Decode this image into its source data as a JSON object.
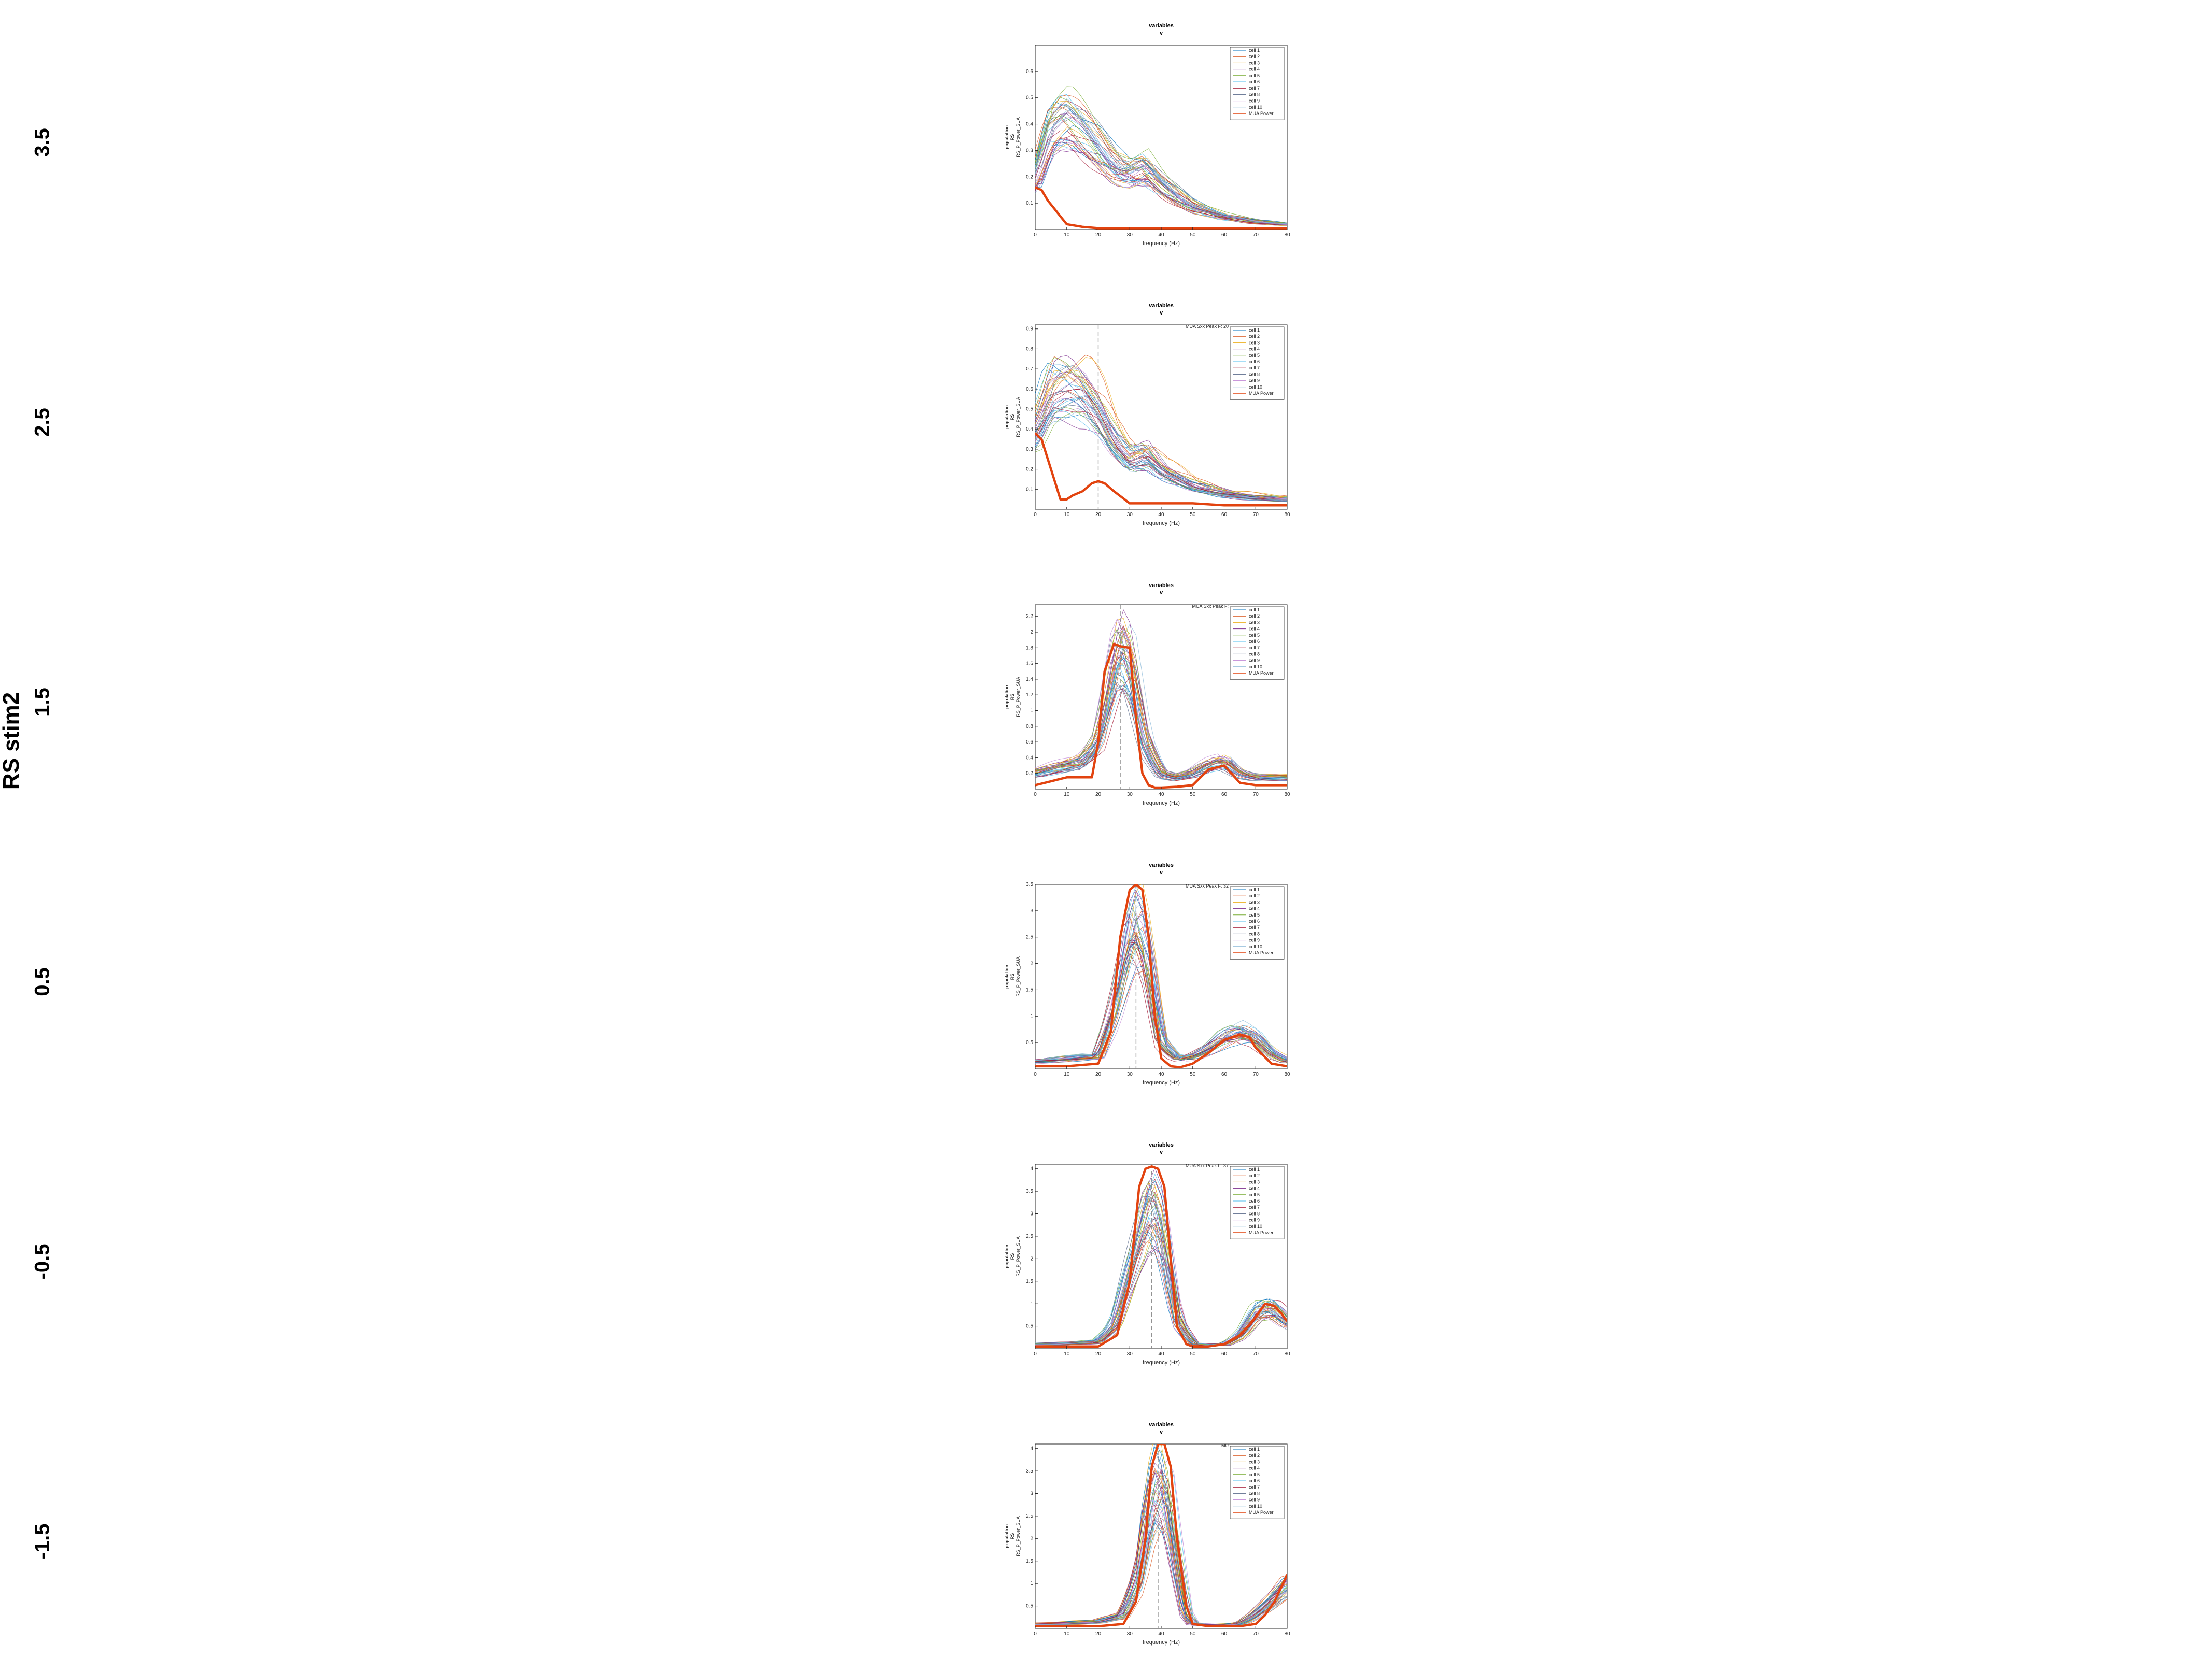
{
  "figure": {
    "title": "RS stim2",
    "row_labels": [
      "3.5",
      "2.5",
      "1.5",
      "0.5",
      "-0.5",
      "-1.5"
    ]
  },
  "colors": {
    "mua": "#e2430f",
    "cells": [
      "#0072bd",
      "#d95319",
      "#edb120",
      "#7e2f8e",
      "#77ac30",
      "#4dbeee",
      "#a2142f",
      "#5b6c8c",
      "#c28ad6",
      "#8bb9d8"
    ],
    "axis": "#262626",
    "dashed": "#8a8a8a"
  },
  "chart_data": [
    {
      "type": "line",
      "super_title": "variables",
      "super_marker": "v",
      "peak_text": "",
      "xlabel": "frequency (Hz)",
      "ylabel": [
        "population",
        "RS",
        "RS_P_Power_SUA"
      ],
      "xlim": [
        0,
        80
      ],
      "ylim": [
        0,
        0.7
      ],
      "xticks": [
        0,
        10,
        20,
        30,
        40,
        50,
        60,
        70,
        80
      ],
      "yticks": [
        0.1,
        0.2,
        0.3,
        0.4,
        0.5,
        0.6
      ],
      "ytick_labels": [
        "0.1",
        "0.2",
        "0.3",
        "0.4",
        "0.5",
        "0.6"
      ],
      "legend": [
        "cell 1",
        "cell 2",
        "cell 3",
        "cell 4",
        "cell 5",
        "cell 6",
        "cell 7",
        "cell 8",
        "cell 9",
        "cell 10",
        "MUA Power"
      ],
      "peak_x": null,
      "mua": {
        "x": [
          0,
          2,
          4,
          6,
          8,
          10,
          15,
          20,
          30,
          40,
          50,
          60,
          70,
          80
        ],
        "y": [
          0.16,
          0.15,
          0.11,
          0.08,
          0.05,
          0.02,
          0.01,
          0.005,
          0.005,
          0.005,
          0.005,
          0.005,
          0.005,
          0.005
        ]
      },
      "cell_profile": {
        "x": [
          0,
          5,
          10,
          15,
          20,
          25,
          30,
          35,
          40,
          50,
          60,
          70,
          80
        ],
        "y": [
          0.2,
          0.4,
          0.43,
          0.38,
          0.32,
          0.25,
          0.22,
          0.24,
          0.17,
          0.09,
          0.05,
          0.03,
          0.02
        ]
      },
      "n_cell_lines": 40
    },
    {
      "type": "line",
      "super_title": "variables",
      "super_marker": "v",
      "peak_text": "MUA Sxx Peak F: 20",
      "xlabel": "frequency (Hz)",
      "ylabel": [
        "population",
        "RS",
        "RS_P_Power_SUA"
      ],
      "xlim": [
        0,
        80
      ],
      "ylim": [
        0,
        0.92
      ],
      "xticks": [
        0,
        10,
        20,
        30,
        40,
        50,
        60,
        70,
        80
      ],
      "yticks": [
        0.1,
        0.2,
        0.3,
        0.4,
        0.5,
        0.6,
        0.7,
        0.8,
        0.9
      ],
      "ytick_labels": [
        "0.1",
        "0.2",
        "0.3",
        "0.4",
        "0.5",
        "0.6",
        "0.7",
        "0.8",
        "0.9"
      ],
      "legend": [
        "cell 1",
        "cell 2",
        "cell 3",
        "cell 4",
        "cell 5",
        "cell 6",
        "cell 7",
        "cell 8",
        "cell 9",
        "cell 10",
        "MUA Power"
      ],
      "peak_x": 20,
      "mua": {
        "x": [
          0,
          2,
          4,
          6,
          8,
          10,
          12,
          15,
          18,
          20,
          22,
          25,
          30,
          40,
          50,
          60,
          70,
          80
        ],
        "y": [
          0.38,
          0.35,
          0.25,
          0.15,
          0.05,
          0.05,
          0.07,
          0.09,
          0.13,
          0.14,
          0.13,
          0.09,
          0.03,
          0.03,
          0.03,
          0.02,
          0.02,
          0.02
        ]
      },
      "cell_profile": {
        "x": [
          0,
          5,
          10,
          15,
          20,
          25,
          30,
          35,
          40,
          50,
          60,
          70,
          80
        ],
        "y": [
          0.4,
          0.6,
          0.62,
          0.6,
          0.5,
          0.35,
          0.25,
          0.28,
          0.2,
          0.12,
          0.08,
          0.06,
          0.05
        ]
      },
      "n_cell_lines": 40
    },
    {
      "type": "line",
      "super_title": "variables",
      "super_marker": "v",
      "peak_text": "MUA Sxx Peak F:",
      "xlabel": "frequency (Hz)",
      "ylabel": [
        "population",
        "RS",
        "RS_P_Power_SUA"
      ],
      "xlim": [
        0,
        80
      ],
      "ylim": [
        0,
        2.35
      ],
      "xticks": [
        0,
        10,
        20,
        30,
        40,
        50,
        60,
        70,
        80
      ],
      "yticks": [
        0.2,
        0.4,
        0.6,
        0.8,
        1,
        1.2,
        1.4,
        1.6,
        1.8,
        2,
        2.2
      ],
      "ytick_labels": [
        "0.2",
        "0.4",
        "0.6",
        "0.8",
        "1",
        "1.2",
        "1.4",
        "1.6",
        "1.8",
        "2",
        "2.2"
      ],
      "legend": [
        "cell 1",
        "cell 2",
        "cell 3",
        "cell 4",
        "cell 5",
        "cell 6",
        "cell 7",
        "cell 8",
        "cell 9",
        "cell 10",
        "MUA Power"
      ],
      "peak_x": 27,
      "mua": {
        "x": [
          0,
          5,
          10,
          15,
          18,
          20,
          22,
          25,
          27,
          30,
          32,
          34,
          36,
          38,
          40,
          45,
          50,
          55,
          60,
          65,
          70,
          75,
          80
        ],
        "y": [
          0.05,
          0.1,
          0.15,
          0.15,
          0.15,
          0.6,
          1.5,
          1.85,
          1.82,
          1.8,
          0.9,
          0.2,
          0.05,
          0.02,
          0.02,
          0.03,
          0.05,
          0.25,
          0.3,
          0.08,
          0.05,
          0.05,
          0.05
        ]
      },
      "cell_profile": {
        "x": [
          0,
          5,
          10,
          15,
          20,
          25,
          27,
          30,
          35,
          40,
          45,
          50,
          55,
          60,
          65,
          70,
          75,
          80
        ],
        "y": [
          0.2,
          0.25,
          0.3,
          0.35,
          0.6,
          1.5,
          1.8,
          1.6,
          0.6,
          0.2,
          0.15,
          0.2,
          0.3,
          0.35,
          0.2,
          0.15,
          0.15,
          0.15
        ]
      },
      "n_cell_lines": 40
    },
    {
      "type": "line",
      "super_title": "variables",
      "super_marker": "v",
      "peak_text": "MUA Sxx Peak F: 32",
      "xlabel": "frequency (Hz)",
      "ylabel": [
        "population",
        "RS",
        "RS_P_Power_SUA"
      ],
      "xlim": [
        0,
        80
      ],
      "ylim": [
        0,
        3.5
      ],
      "xticks": [
        0,
        10,
        20,
        30,
        40,
        50,
        60,
        70,
        80
      ],
      "yticks": [
        0.5,
        1,
        1.5,
        2,
        2.5,
        3,
        3.5
      ],
      "ytick_labels": [
        "0.5",
        "1",
        "1.5",
        "2",
        "2.5",
        "3",
        "3.5"
      ],
      "legend": [
        "cell 1",
        "cell 2",
        "cell 3",
        "cell 4",
        "cell 5",
        "cell 6",
        "cell 7",
        "cell 8",
        "cell 9",
        "cell 10",
        "MUA Power"
      ],
      "peak_x": 32,
      "mua": {
        "x": [
          0,
          10,
          20,
          24,
          27,
          30,
          32,
          34,
          36,
          38,
          40,
          43,
          46,
          50,
          55,
          60,
          65,
          68,
          70,
          75,
          80
        ],
        "y": [
          0.05,
          0.05,
          0.1,
          0.7,
          2.5,
          3.4,
          3.5,
          3.4,
          2.5,
          1.0,
          0.2,
          0.05,
          0.03,
          0.1,
          0.3,
          0.55,
          0.65,
          0.6,
          0.4,
          0.1,
          0.05
        ]
      },
      "cell_profile": {
        "x": [
          0,
          10,
          20,
          25,
          30,
          32,
          35,
          40,
          45,
          50,
          55,
          60,
          65,
          70,
          75,
          80
        ],
        "y": [
          0.15,
          0.2,
          0.25,
          1.2,
          2.6,
          2.8,
          2.3,
          0.5,
          0.2,
          0.25,
          0.4,
          0.6,
          0.7,
          0.6,
          0.3,
          0.15
        ]
      },
      "n_cell_lines": 40
    },
    {
      "type": "line",
      "super_title": "variables",
      "super_marker": "v",
      "peak_text": "MUA Sxx Peak F: 37",
      "xlabel": "frequency (Hz)",
      "ylabel": [
        "population",
        "RS",
        "RS_P_Power_SUA"
      ],
      "xlim": [
        0,
        80
      ],
      "ylim": [
        0,
        4.1
      ],
      "xticks": [
        0,
        10,
        20,
        30,
        40,
        50,
        60,
        70,
        80
      ],
      "yticks": [
        0.5,
        1,
        1.5,
        2,
        2.5,
        3,
        3.5,
        4
      ],
      "ytick_labels": [
        "0.5",
        "1",
        "1.5",
        "2",
        "2.5",
        "3",
        "3.5",
        "4"
      ],
      "legend": [
        "cell 1",
        "cell 2",
        "cell 3",
        "cell 4",
        "cell 5",
        "cell 6",
        "cell 7",
        "cell 8",
        "cell 9",
        "cell 10",
        "MUA Power"
      ],
      "peak_x": 37,
      "mua": {
        "x": [
          0,
          10,
          20,
          26,
          30,
          33,
          35,
          37,
          39,
          41,
          43,
          45,
          48,
          50,
          55,
          60,
          65,
          70,
          73,
          76,
          78,
          80
        ],
        "y": [
          0.05,
          0.05,
          0.05,
          0.3,
          1.5,
          3.6,
          4.0,
          4.05,
          4.0,
          3.6,
          2.0,
          0.5,
          0.1,
          0.05,
          0.05,
          0.1,
          0.3,
          0.7,
          1.0,
          0.95,
          0.8,
          0.6
        ]
      },
      "cell_profile": {
        "x": [
          0,
          10,
          20,
          25,
          30,
          35,
          37,
          40,
          45,
          50,
          55,
          60,
          65,
          70,
          75,
          80
        ],
        "y": [
          0.1,
          0.12,
          0.15,
          0.5,
          1.8,
          3.0,
          3.2,
          2.6,
          0.6,
          0.1,
          0.08,
          0.1,
          0.3,
          0.8,
          0.9,
          0.6
        ]
      },
      "n_cell_lines": 40
    },
    {
      "type": "line",
      "super_title": "variables",
      "super_marker": "v",
      "peak_text": "MU",
      "xlabel": "frequency (Hz)",
      "ylabel": [
        "population",
        "RS",
        "RS_P_Power_SUA"
      ],
      "xlim": [
        0,
        80
      ],
      "ylim": [
        0,
        4.1
      ],
      "xticks": [
        0,
        10,
        20,
        30,
        40,
        50,
        60,
        70,
        80
      ],
      "yticks": [
        0.5,
        1,
        1.5,
        2,
        2.5,
        3,
        3.5,
        4
      ],
      "ytick_labels": [
        "0.5",
        "1",
        "1.5",
        "2",
        "2.5",
        "3",
        "3.5",
        "4"
      ],
      "legend": [
        "cell 1",
        "cell 2",
        "cell 3",
        "cell 4",
        "cell 5",
        "cell 6",
        "cell 7",
        "cell 8",
        "cell 9",
        "cell 10",
        "MUA Power"
      ],
      "peak_x": 39,
      "mua": {
        "x": [
          0,
          10,
          20,
          28,
          32,
          35,
          37,
          39,
          41,
          43,
          45,
          48,
          50,
          55,
          60,
          65,
          70,
          73,
          76,
          78,
          80
        ],
        "y": [
          0.05,
          0.05,
          0.05,
          0.1,
          0.6,
          2.0,
          3.6,
          4.1,
          4.1,
          3.6,
          2.0,
          0.5,
          0.1,
          0.05,
          0.05,
          0.05,
          0.1,
          0.3,
          0.6,
          0.9,
          1.2
        ]
      },
      "cell_profile": {
        "x": [
          0,
          10,
          20,
          28,
          33,
          36,
          39,
          42,
          45,
          48,
          50,
          55,
          60,
          65,
          70,
          75,
          80
        ],
        "y": [
          0.1,
          0.12,
          0.15,
          0.3,
          1.2,
          2.6,
          3.3,
          2.9,
          1.5,
          0.3,
          0.1,
          0.08,
          0.08,
          0.1,
          0.3,
          0.6,
          1.0
        ]
      },
      "n_cell_lines": 40
    }
  ]
}
